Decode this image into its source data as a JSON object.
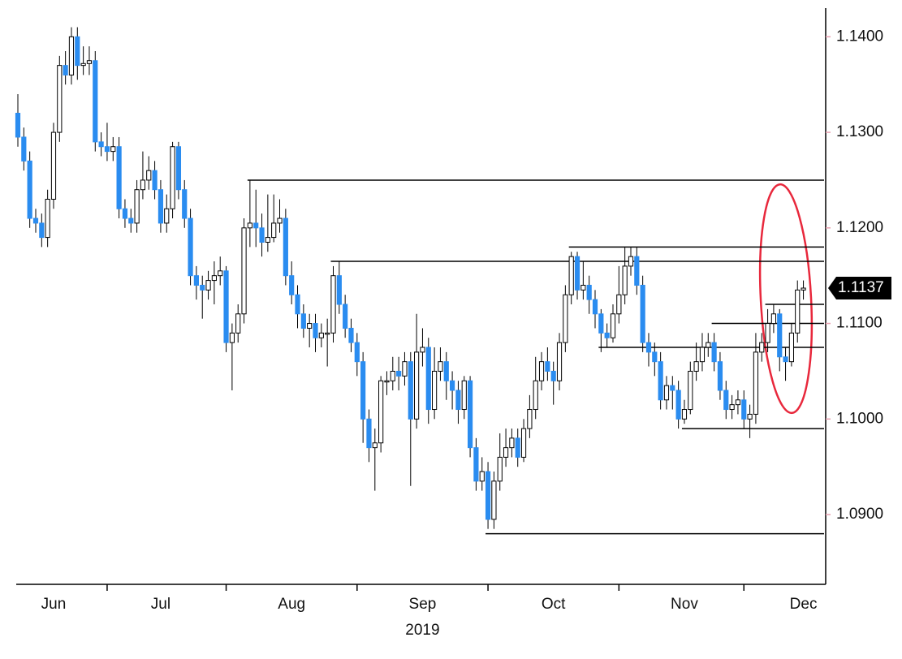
{
  "chart_data": {
    "type": "candlestick",
    "categories": [
      null,
      null,
      null,
      null,
      null,
      null,
      "Jun",
      null,
      null,
      null,
      null,
      null,
      null,
      null,
      null,
      null,
      null,
      null,
      null,
      null,
      null,
      null,
      null,
      null,
      "Jul",
      null,
      null,
      null,
      null,
      null,
      null,
      null,
      null,
      null,
      null,
      null,
      null,
      null,
      null,
      null,
      null,
      null,
      null,
      null,
      null,
      null,
      "Aug",
      null,
      null,
      null,
      null,
      null,
      null,
      null,
      null,
      null,
      null,
      null,
      null,
      null,
      null,
      null,
      null,
      null,
      null,
      null,
      null,
      null,
      "Sep",
      null,
      null,
      null,
      null,
      null,
      null,
      null,
      null,
      null,
      null,
      null,
      null,
      null,
      null,
      null,
      null,
      null,
      null,
      null,
      null,
      null,
      "Oct",
      null,
      null,
      null,
      null,
      null,
      null,
      null,
      null,
      null,
      null,
      null,
      null,
      null,
      null,
      null,
      null,
      null,
      null,
      null,
      null,
      null,
      "Nov",
      null,
      null,
      null,
      null,
      null,
      null,
      null,
      null,
      null,
      null,
      null,
      null,
      null,
      null,
      null,
      null,
      null,
      null,
      null,
      "Dec"
    ],
    "year": "2019",
    "open": [
      1.132,
      1.1295,
      1.127,
      1.121,
      1.1205,
      1.119,
      1.123,
      1.13,
      1.137,
      1.136,
      1.14,
      1.137,
      1.1372,
      1.1375,
      1.129,
      1.1285,
      1.128,
      1.1285,
      1.122,
      1.121,
      1.1205,
      1.124,
      1.125,
      1.126,
      1.124,
      1.1205,
      1.122,
      1.1285,
      1.124,
      1.121,
      1.115,
      1.114,
      1.1135,
      1.1145,
      1.115,
      1.1155,
      1.108,
      1.109,
      1.111,
      1.12,
      1.1205,
      1.12,
      1.1185,
      1.119,
      1.1205,
      1.121,
      1.115,
      1.113,
      1.111,
      1.1095,
      1.11,
      1.1085,
      1.109,
      1.109,
      1.115,
      1.112,
      1.1095,
      1.108,
      1.106,
      1.1,
      1.097,
      1.0975,
      1.104,
      1.104,
      1.105,
      1.1045,
      1.106,
      1.1,
      1.107,
      1.1075,
      1.101,
      1.105,
      1.106,
      1.104,
      1.103,
      1.101,
      1.104,
      1.097,
      1.0935,
      1.0945,
      1.0895,
      1.0935,
      1.096,
      1.097,
      1.098,
      1.096,
      1.099,
      1.101,
      1.104,
      1.106,
      1.105,
      1.104,
      1.108,
      1.113,
      1.117,
      1.1135,
      1.114,
      1.1125,
      1.111,
      1.109,
      1.1085,
      1.111,
      1.113,
      1.116,
      1.117,
      1.114,
      1.108,
      1.107,
      1.106,
      1.102,
      1.1035,
      1.103,
      1.1,
      1.101,
      1.105,
      1.106,
      1.1075,
      1.108,
      1.106,
      1.103,
      1.101,
      1.1015,
      1.102,
      1.1,
      1.1005,
      1.107,
      1.108,
      1.11,
      1.111,
      1.1065,
      1.106,
      1.109,
      1.1135
    ],
    "high": [
      1.134,
      1.1305,
      1.128,
      1.122,
      1.1215,
      1.124,
      1.131,
      1.138,
      1.1385,
      1.141,
      1.141,
      1.139,
      1.139,
      1.1385,
      1.13,
      1.131,
      1.1295,
      1.1295,
      1.123,
      1.122,
      1.125,
      1.128,
      1.1275,
      1.127,
      1.125,
      1.1235,
      1.129,
      1.129,
      1.125,
      1.122,
      1.116,
      1.115,
      1.1155,
      1.1165,
      1.117,
      1.116,
      1.11,
      1.112,
      1.121,
      1.125,
      1.124,
      1.1215,
      1.1235,
      1.1235,
      1.123,
      1.122,
      1.1165,
      1.114,
      1.112,
      1.111,
      1.111,
      1.11,
      1.1105,
      1.116,
      1.1165,
      1.113,
      1.1105,
      1.109,
      1.107,
      1.101,
      1.099,
      1.1045,
      1.105,
      1.1065,
      1.1065,
      1.107,
      1.107,
      1.111,
      1.1095,
      1.1085,
      1.1075,
      1.1075,
      1.107,
      1.105,
      1.104,
      1.1045,
      1.1045,
      1.098,
      1.096,
      1.0955,
      1.0945,
      1.0985,
      1.099,
      1.099,
      1.099,
      1.1,
      1.1025,
      1.1065,
      1.107,
      1.1075,
      1.106,
      1.109,
      1.114,
      1.1175,
      1.1175,
      1.1165,
      1.115,
      1.1135,
      1.1115,
      1.11,
      1.112,
      1.116,
      1.118,
      1.118,
      1.118,
      1.115,
      1.109,
      1.108,
      1.107,
      1.1045,
      1.1045,
      1.104,
      1.102,
      1.106,
      1.108,
      1.109,
      1.109,
      1.109,
      1.107,
      1.104,
      1.1025,
      1.103,
      1.103,
      1.1015,
      1.109,
      1.109,
      1.1115,
      1.112,
      1.1115,
      1.1075,
      1.11,
      1.1145,
      1.1145
    ],
    "low": [
      1.1285,
      1.126,
      1.12,
      1.1195,
      1.118,
      1.118,
      1.122,
      1.129,
      1.135,
      1.135,
      1.1355,
      1.136,
      1.136,
      1.128,
      1.1275,
      1.127,
      1.127,
      1.121,
      1.12,
      1.1195,
      1.1195,
      1.123,
      1.124,
      1.123,
      1.1195,
      1.1195,
      1.121,
      1.123,
      1.12,
      1.114,
      1.1125,
      1.1105,
      1.1125,
      1.112,
      1.114,
      1.107,
      1.103,
      1.108,
      1.11,
      1.118,
      1.118,
      1.117,
      1.1175,
      1.1185,
      1.1195,
      1.114,
      1.112,
      1.1095,
      1.1085,
      1.1075,
      1.107,
      1.1075,
      1.1055,
      1.108,
      1.111,
      1.1085,
      1.107,
      1.1045,
      1.0975,
      1.0955,
      1.0925,
      1.0965,
      1.1025,
      1.103,
      1.103,
      1.1035,
      1.093,
      1.099,
      1.1055,
      1.0995,
      1.1,
      1.104,
      1.102,
      1.101,
      1.0995,
      1.1,
      1.096,
      1.0925,
      1.0925,
      1.0885,
      1.0885,
      1.0925,
      1.095,
      1.096,
      1.095,
      1.0955,
      1.098,
      1.1,
      1.103,
      1.104,
      1.1015,
      1.103,
      1.107,
      1.112,
      1.1125,
      1.1125,
      1.111,
      1.1095,
      1.107,
      1.1075,
      1.108,
      1.11,
      1.112,
      1.115,
      1.113,
      1.107,
      1.1055,
      1.1045,
      1.101,
      1.101,
      1.101,
      1.099,
      1.0995,
      1.1005,
      1.104,
      1.105,
      1.1065,
      1.105,
      1.102,
      1.1,
      1.1,
      1.1005,
      1.099,
      1.098,
      1.0995,
      1.106,
      1.107,
      1.109,
      1.105,
      1.104,
      1.1055,
      1.108,
      1.1125
    ],
    "close": [
      1.1295,
      1.127,
      1.121,
      1.1205,
      1.119,
      1.123,
      1.13,
      1.137,
      1.136,
      1.14,
      1.137,
      1.1372,
      1.1375,
      1.129,
      1.1285,
      1.128,
      1.1285,
      1.122,
      1.121,
      1.1205,
      1.124,
      1.125,
      1.126,
      1.124,
      1.1205,
      1.122,
      1.1285,
      1.124,
      1.121,
      1.115,
      1.114,
      1.1135,
      1.1145,
      1.115,
      1.1155,
      1.108,
      1.109,
      1.111,
      1.12,
      1.1205,
      1.12,
      1.1185,
      1.119,
      1.1205,
      1.121,
      1.115,
      1.113,
      1.111,
      1.1095,
      1.11,
      1.1085,
      1.109,
      1.109,
      1.115,
      1.112,
      1.1095,
      1.108,
      1.106,
      1.1,
      1.097,
      1.0975,
      1.104,
      1.104,
      1.105,
      1.1045,
      1.106,
      1.1,
      1.107,
      1.1075,
      1.101,
      1.105,
      1.106,
      1.104,
      1.103,
      1.101,
      1.104,
      1.097,
      1.0935,
      1.0945,
      1.0895,
      1.0935,
      1.096,
      1.097,
      1.098,
      1.096,
      1.099,
      1.101,
      1.104,
      1.106,
      1.105,
      1.104,
      1.108,
      1.113,
      1.117,
      1.1135,
      1.114,
      1.1125,
      1.111,
      1.109,
      1.1085,
      1.111,
      1.113,
      1.116,
      1.117,
      1.114,
      1.108,
      1.107,
      1.106,
      1.102,
      1.1035,
      1.103,
      1.1,
      1.101,
      1.105,
      1.106,
      1.1075,
      1.108,
      1.106,
      1.103,
      1.101,
      1.1015,
      1.102,
      1.1,
      1.1005,
      1.107,
      1.108,
      1.11,
      1.111,
      1.1065,
      1.106,
      1.109,
      1.1135,
      1.1137
    ],
    "up_color": "#ffffff",
    "down_color": "#2a8cf0",
    "levels": [
      {
        "value": 1.125,
        "start": 39
      },
      {
        "value": 1.118,
        "start": 93
      },
      {
        "value": 1.1165,
        "start": 53
      },
      {
        "value": 1.112,
        "start": 126
      },
      {
        "value": 1.11,
        "start": 117
      },
      {
        "value": 1.1075,
        "start": 98
      },
      {
        "value": 1.099,
        "start": 112
      },
      {
        "value": 1.088,
        "start": 79
      }
    ],
    "last_price": {
      "value": 1.1137,
      "label": "1.1137"
    },
    "ylim": [
      1.0827,
      1.143
    ],
    "yticks": [
      {
        "value": 1.09,
        "label": "1.0900"
      },
      {
        "value": 1.1,
        "label": "1.1000"
      },
      {
        "value": 1.11,
        "label": "1.1100"
      },
      {
        "value": 1.12,
        "label": "1.1200"
      },
      {
        "value": 1.13,
        "label": "1.1300"
      },
      {
        "value": 1.14,
        "label": "1.1400"
      }
    ]
  }
}
